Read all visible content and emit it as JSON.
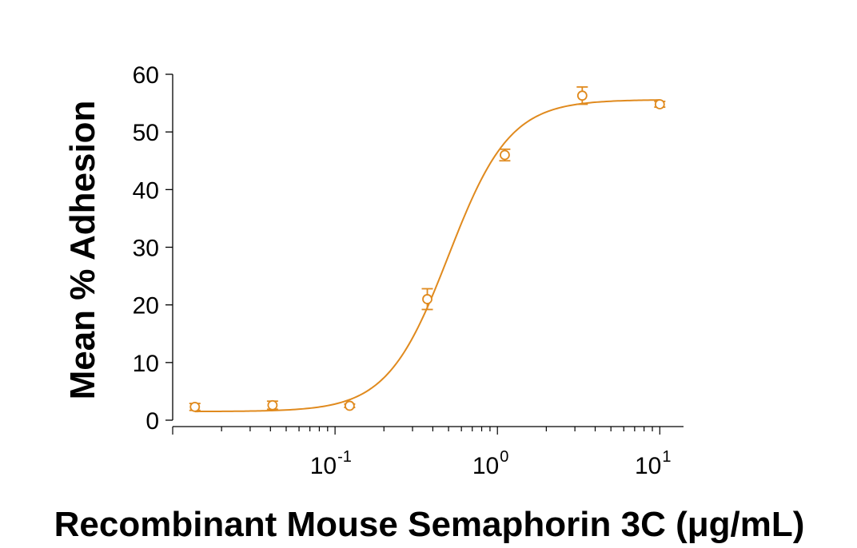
{
  "chart_data": {
    "type": "scatter",
    "xscale": "log",
    "xlabel": "Recombinant Mouse Semaphorin 3C (μg/mL)",
    "ylabel": "Mean % Adhesion",
    "xlim": [
      0.01,
      14
    ],
    "ylim": [
      0,
      60
    ],
    "yticks": [
      0,
      10,
      20,
      30,
      40,
      50,
      60
    ],
    "xticks": [
      {
        "value": 0.1,
        "base": "10",
        "exp": "-1"
      },
      {
        "value": 1,
        "base": "10",
        "exp": "0"
      },
      {
        "value": 10,
        "base": "10",
        "exp": "1"
      }
    ],
    "grid": false,
    "color": "#e08a1e",
    "series": [
      {
        "points": [
          {
            "x": 0.0137,
            "y": 2.3,
            "err": 0.6
          },
          {
            "x": 0.0412,
            "y": 2.6,
            "err": 0.7
          },
          {
            "x": 0.123,
            "y": 2.5,
            "err": 0.3
          },
          {
            "x": 0.37,
            "y": 21.0,
            "err": 1.8
          },
          {
            "x": 1.11,
            "y": 46.0,
            "err": 1.0
          },
          {
            "x": 3.33,
            "y": 56.3,
            "err": 1.5
          },
          {
            "x": 10.0,
            "y": 54.8,
            "err": 0.5
          }
        ]
      }
    ],
    "fit": {
      "bottom": 1.5,
      "top": 55.6,
      "ec50": 0.5,
      "hill": 2.3
    }
  }
}
